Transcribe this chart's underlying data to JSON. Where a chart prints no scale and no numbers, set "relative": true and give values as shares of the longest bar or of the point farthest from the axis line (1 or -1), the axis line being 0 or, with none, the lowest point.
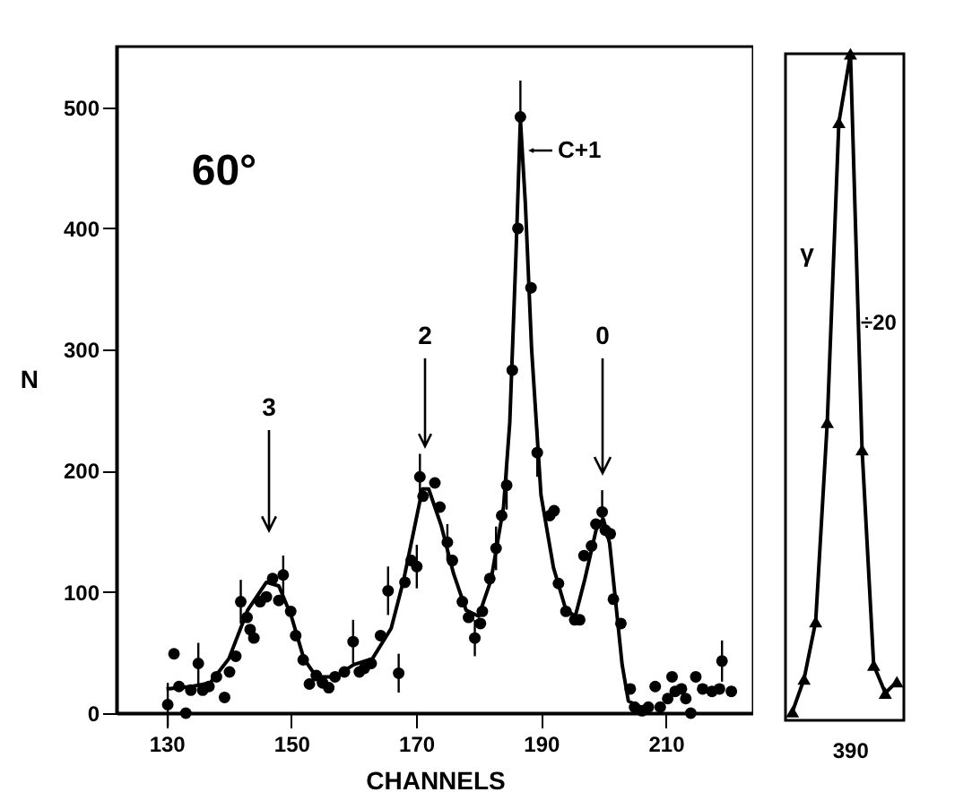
{
  "chart_data": [
    {
      "type": "scatter",
      "xlabel": "CHANNELS",
      "ylabel": "N",
      "xlim": [
        122,
        224
      ],
      "ylim": [
        0,
        550
      ],
      "xticks": [
        130,
        150,
        170,
        190,
        210
      ],
      "yticks": [
        0,
        100,
        200,
        300,
        400,
        500
      ],
      "grid": false,
      "annotations": [
        "60°",
        "3",
        "2",
        "C+1",
        "0"
      ],
      "series": [
        {
          "marker": "circle",
          "color": "#000000",
          "x": [
            130.2,
            131.2,
            132,
            133.1,
            133.9,
            135.1,
            135.8,
            136.8,
            138,
            139.3,
            140.1,
            141.1,
            141.9,
            142.9,
            143.4,
            144,
            145,
            146,
            147,
            148,
            148.7,
            149.9,
            150.7,
            151.9,
            152.9,
            154,
            155,
            156,
            157,
            158.5,
            159.9,
            160.9,
            161.7,
            162.8,
            164.3,
            165.5,
            167.2,
            168.2,
            169.2,
            170.1,
            170.6,
            171.1,
            173,
            173.8,
            175,
            175.8,
            177.4,
            178.4,
            179.4,
            180.3,
            180.6,
            181.8,
            182.8,
            183.7,
            184.5,
            185.4,
            186.3,
            186.7,
            188.4,
            189.4,
            191.4,
            192.1,
            192.8,
            194,
            195.4,
            196.2,
            196.9,
            198.1,
            198.8,
            199.8,
            200.3,
            201.1,
            201.6,
            202.8,
            204.3,
            205,
            206.2,
            207.2,
            208.3,
            209.1,
            210.3,
            211,
            211.5,
            212.5,
            213.2,
            214,
            214.8,
            215.9,
            217.4,
            218.6,
            219,
            220.5
          ],
          "values": [
            7,
            49,
            22,
            0,
            19,
            41,
            19,
            22,
            30,
            13,
            34,
            47,
            92,
            79,
            69,
            62,
            92,
            96,
            111,
            93,
            114,
            84,
            64,
            44,
            24,
            31,
            25,
            21,
            30,
            34,
            59,
            34,
            37,
            41,
            64,
            101,
            33,
            108,
            126,
            121,
            195,
            179,
            190,
            170,
            141,
            126,
            92,
            79,
            62,
            74,
            84,
            111,
            136,
            163,
            188,
            283,
            400,
            492,
            351,
            215,
            163,
            167,
            107,
            84,
            77,
            77,
            130,
            138,
            156,
            166,
            151,
            148,
            94,
            74,
            20,
            5,
            2,
            5,
            22,
            5,
            12,
            30,
            18,
            20,
            12,
            0,
            30,
            20,
            18,
            20,
            43,
            18
          ],
          "errors": [
            18,
            null,
            null,
            null,
            null,
            17,
            null,
            null,
            null,
            null,
            null,
            null,
            18,
            null,
            null,
            null,
            null,
            null,
            null,
            null,
            16,
            null,
            null,
            null,
            null,
            null,
            null,
            null,
            null,
            null,
            18,
            null,
            null,
            null,
            null,
            20,
            16,
            null,
            null,
            18,
            19,
            null,
            null,
            null,
            15,
            null,
            null,
            null,
            15,
            null,
            null,
            null,
            18,
            null,
            20,
            null,
            null,
            30,
            null,
            20,
            null,
            null,
            null,
            null,
            null,
            null,
            null,
            null,
            null,
            18,
            null,
            null,
            null,
            null,
            null,
            null,
            null,
            null,
            null,
            null,
            null,
            null,
            null,
            null,
            null,
            null,
            null,
            null,
            null,
            null,
            17,
            null
          ]
        },
        {
          "type": "line",
          "marker": "none",
          "line_style": "solid",
          "color": "#000000",
          "x": [
            130,
            134,
            137,
            140,
            143,
            146,
            148,
            150,
            152,
            154,
            157,
            160,
            163,
            166,
            168,
            170,
            171,
            172,
            174,
            176,
            178,
            180,
            182,
            184,
            185,
            186,
            186.7,
            187.5,
            188.5,
            190,
            192,
            194,
            195.5,
            197,
            199,
            200,
            201,
            202,
            203,
            204,
            206
          ],
          "values": [
            20,
            22,
            25,
            45,
            85,
            108,
            105,
            80,
            45,
            30,
            30,
            40,
            45,
            70,
            110,
            160,
            185,
            185,
            155,
            115,
            85,
            80,
            110,
            170,
            240,
            380,
            490,
            420,
            300,
            180,
            120,
            85,
            80,
            110,
            155,
            160,
            140,
            90,
            40,
            10,
            5
          ]
        }
      ]
    },
    {
      "type": "line",
      "categories": [
        null,
        null,
        null,
        null,
        null,
        null,
        null,
        null,
        null,
        null
      ],
      "relative": true,
      "grid": false,
      "annotations": [
        "γ",
        "÷20",
        "390"
      ],
      "series": [
        {
          "marker": "triangle",
          "line_style": "solid",
          "color": "#000000",
          "values": [
            0.013,
            0.062,
            0.148,
            0.447,
            0.897,
            1,
            0.406,
            0.083,
            0.041,
            0.058
          ]
        }
      ]
    }
  ]
}
